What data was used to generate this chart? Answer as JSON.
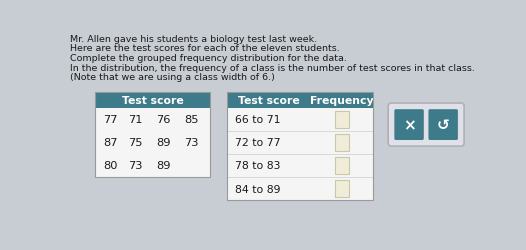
{
  "title_lines": [
    "Mr. Allen gave his students a biology test last week.",
    "Here are the test scores for each of the eleven students.",
    "Complete the grouped frequency distribution for the data.",
    "In the distribution, the frequency of a class is the number of test scores in that class.",
    "(Note that we are using a class width of 6.)"
  ],
  "scores_header": "Test score",
  "scores": [
    [
      "77",
      "71",
      "76",
      "85"
    ],
    [
      "87",
      "75",
      "89",
      "73"
    ],
    [
      "80",
      "73",
      "89",
      ""
    ]
  ],
  "freq_header_score": "Test score",
  "freq_header_freq": "Frequency",
  "freq_rows": [
    "66 to 71",
    "72 to 77",
    "78 to 83",
    "84 to 89"
  ],
  "bg_color": "#c8cdd4",
  "table_header_bg": "#3d7a8a",
  "table_header_fg": "#ffffff",
  "table_body_bg": "#f5f5f5",
  "input_box_bg": "#f0ecd8",
  "input_box_edge": "#c8c8a8",
  "button_bg": "#3d7a8a",
  "button_fg": "#ffffff",
  "button_container_bg": "#e0e0e8",
  "button_container_edge": "#b0b0b8",
  "text_color": "#1a1a1a",
  "title_fontsize": 6.8,
  "table_fontsize": 7.8,
  "score_fontsize": 8.2
}
